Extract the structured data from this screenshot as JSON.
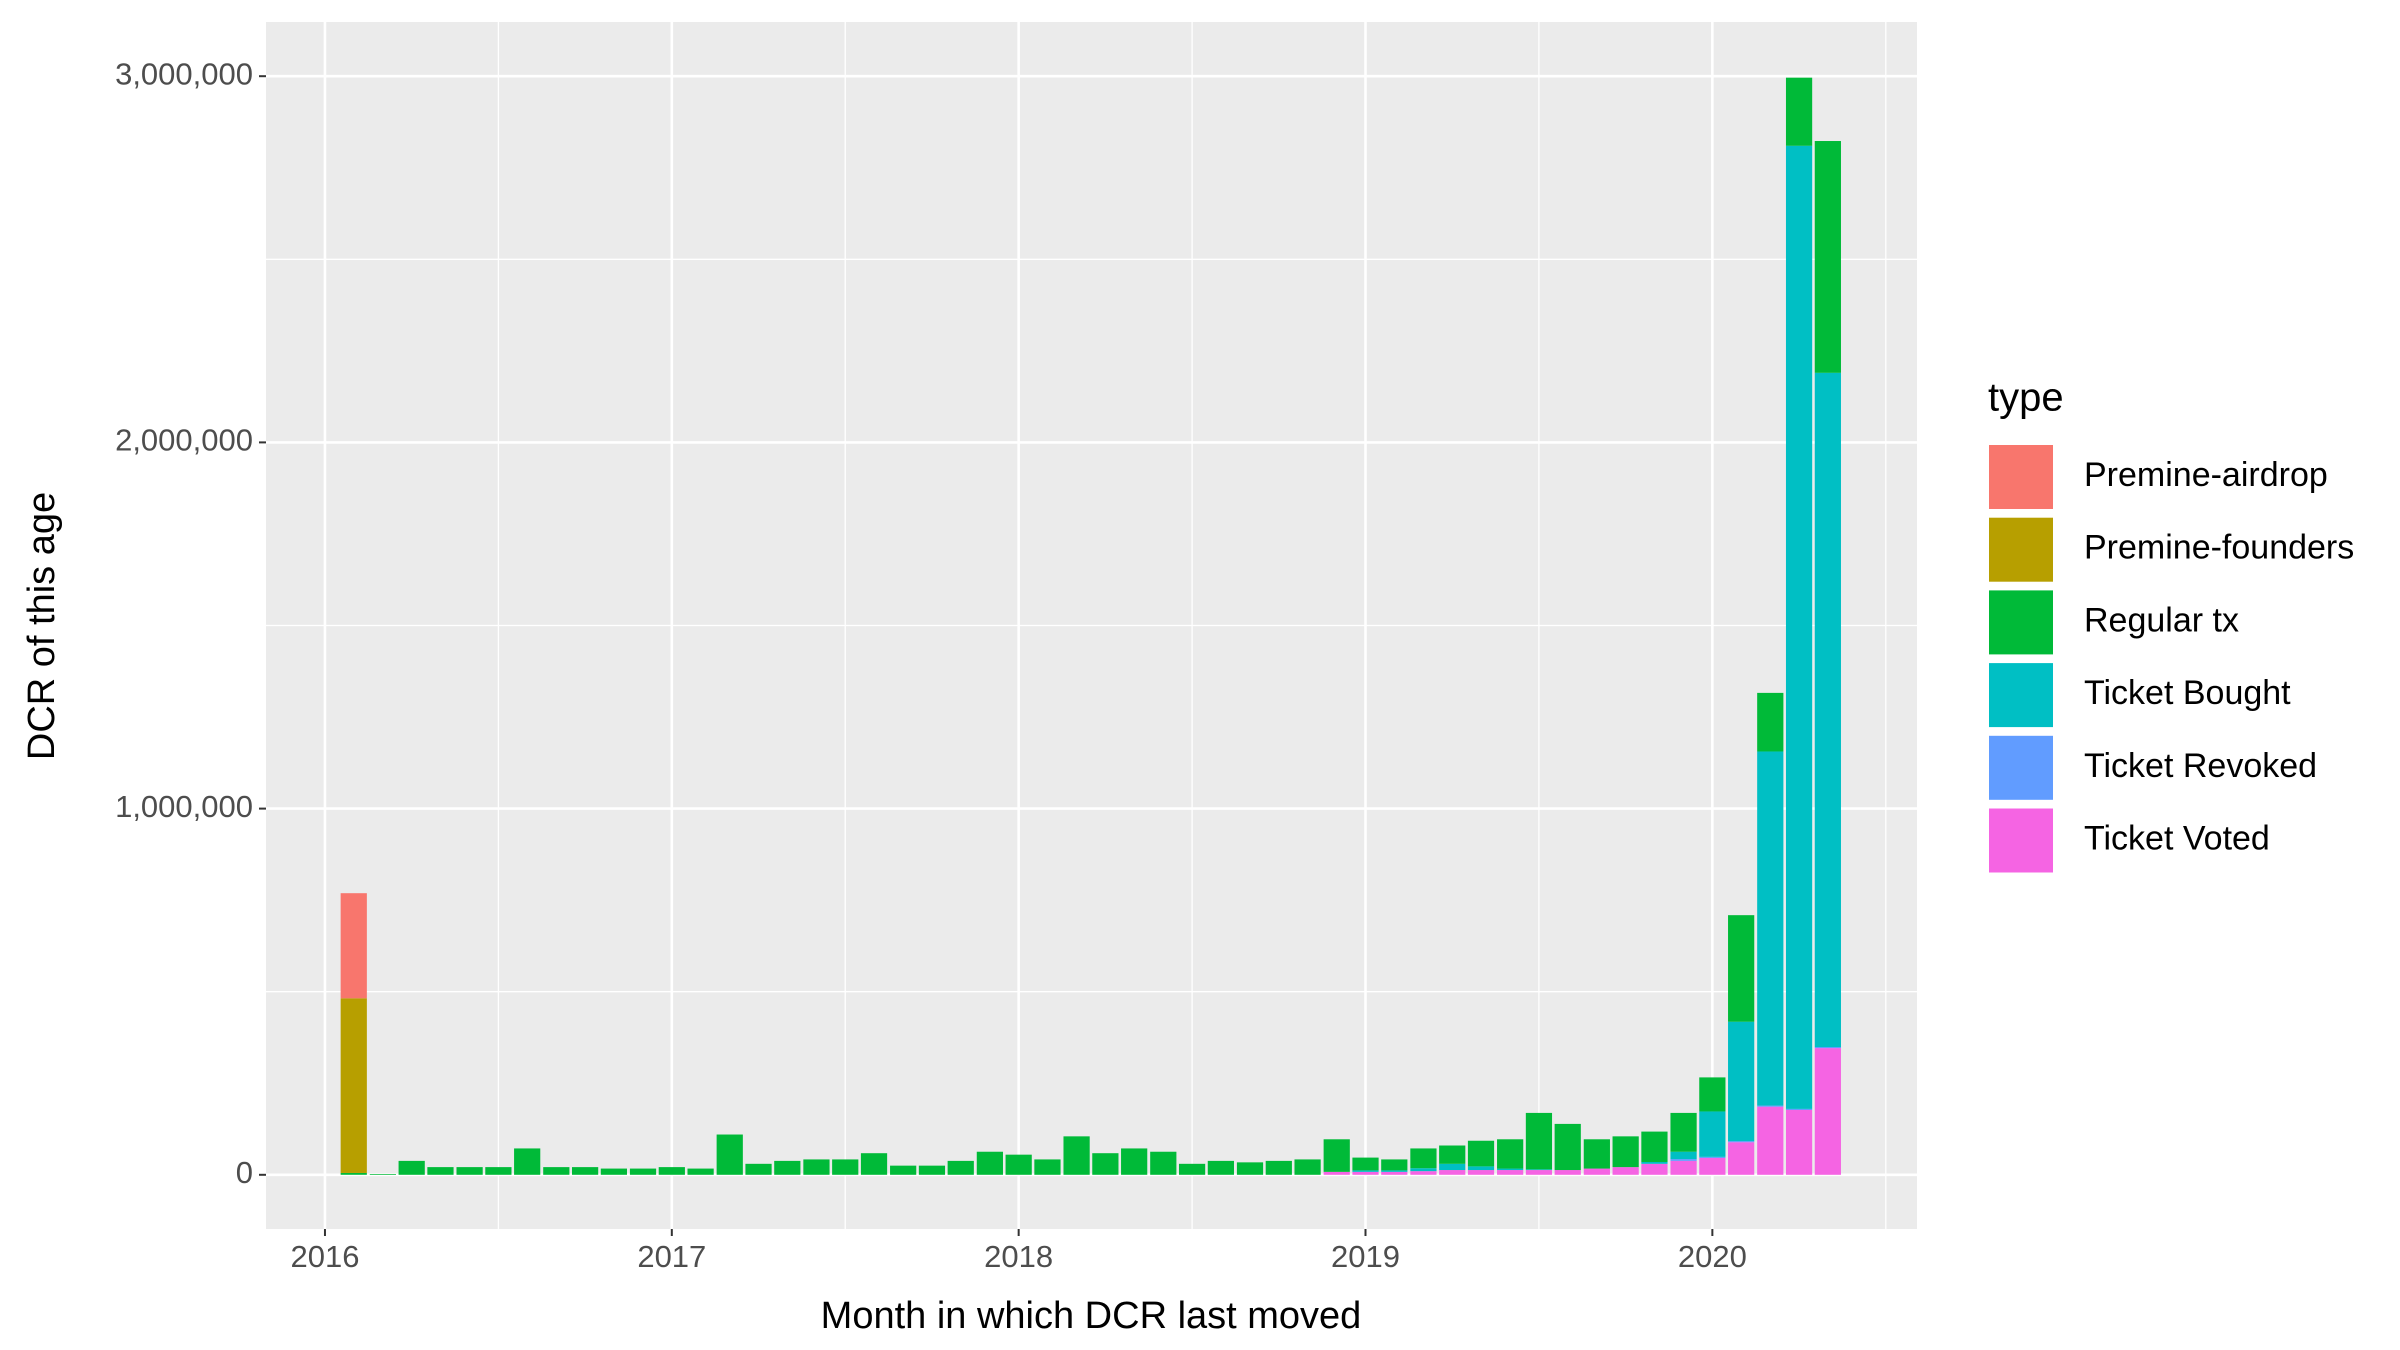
{
  "chart_data": {
    "type": "bar",
    "stacked": true,
    "x_label": "Month in which DCR last moved",
    "y_label": "DCR of this age",
    "legend_title": "type",
    "legend_position": "right",
    "grid": true,
    "x": [
      2016.083,
      2016.167,
      2016.25,
      2016.333,
      2016.417,
      2016.5,
      2016.583,
      2016.667,
      2016.75,
      2016.833,
      2016.917,
      2017,
      2017.083,
      2017.167,
      2017.25,
      2017.333,
      2017.417,
      2017.5,
      2017.583,
      2017.667,
      2017.75,
      2017.833,
      2017.917,
      2018,
      2018.083,
      2018.167,
      2018.25,
      2018.333,
      2018.417,
      2018.5,
      2018.583,
      2018.667,
      2018.75,
      2018.833,
      2018.917,
      2019,
      2019.083,
      2019.167,
      2019.25,
      2019.333,
      2019.417,
      2019.5,
      2019.583,
      2019.667,
      2019.75,
      2019.833,
      2019.917,
      2020,
      2020.083,
      2020.167,
      2020.25,
      2020.333
    ],
    "xlim": [
      2015.83,
      2020.59
    ],
    "xticks": [
      2016,
      2017,
      2018,
      2019,
      2020
    ],
    "ylim": [
      -148000,
      3148000
    ],
    "yticks": [
      0,
      {
        "value": 1000000,
        "label": "1,000,000"
      },
      {
        "value": 2000000,
        "label": "2,000,000"
      },
      {
        "value": 3000000,
        "label": "3,000,000"
      }
    ],
    "series": [
      {
        "name": "Premine-airdrop",
        "color": "#F8766D",
        "values": [
          287000,
          0,
          0,
          0,
          0,
          0,
          0,
          0,
          0,
          0,
          0,
          0,
          0,
          0,
          0,
          0,
          0,
          0,
          0,
          0,
          0,
          0,
          0,
          0,
          0,
          0,
          0,
          0,
          0,
          0,
          0,
          0,
          0,
          0,
          0,
          0,
          0,
          0,
          0,
          0,
          0,
          0,
          0,
          0,
          0,
          0,
          0,
          0,
          0,
          0,
          0,
          0
        ]
      },
      {
        "name": "Premine-founders",
        "color": "#B79F00",
        "values": [
          477000,
          0,
          0,
          0,
          0,
          0,
          0,
          0,
          0,
          0,
          0,
          0,
          0,
          0,
          0,
          0,
          0,
          0,
          0,
          0,
          0,
          0,
          0,
          0,
          0,
          0,
          0,
          0,
          0,
          0,
          0,
          0,
          0,
          0,
          0,
          0,
          0,
          0,
          0,
          0,
          0,
          0,
          0,
          0,
          0,
          0,
          0,
          0,
          0,
          0,
          0,
          0
        ]
      },
      {
        "name": "Regular tx",
        "color": "#00BA38",
        "values": [
          5000,
          2000,
          38000,
          21000,
          21000,
          21000,
          72000,
          21000,
          21000,
          17000,
          17000,
          21000,
          17000,
          110000,
          30000,
          38000,
          42000,
          42000,
          59000,
          25000,
          25000,
          38000,
          63000,
          55000,
          42000,
          105000,
          59000,
          72000,
          63000,
          30000,
          38000,
          34000,
          38000,
          42000,
          89000,
          35000,
          30000,
          54000,
          50000,
          70000,
          80000,
          154000,
          126000,
          80000,
          84000,
          83000,
          106000,
          93000,
          291000,
          160000,
          186000,
          633000
        ]
      },
      {
        "name": "Ticket Bought",
        "color": "#00BFC4",
        "values": [
          0,
          0,
          0,
          0,
          0,
          0,
          0,
          0,
          0,
          0,
          0,
          0,
          0,
          0,
          0,
          0,
          0,
          0,
          0,
          0,
          0,
          0,
          0,
          0,
          0,
          0,
          0,
          0,
          0,
          0,
          0,
          0,
          0,
          0,
          0,
          4000,
          4000,
          8000,
          17000,
          10000,
          4000,
          2000,
          0,
          0,
          0,
          5000,
          20000,
          124000,
          326000,
          967000,
          2630000,
          1841000
        ]
      },
      {
        "name": "Ticket Revoked",
        "color": "#619CFF",
        "values": [
          0,
          0,
          0,
          0,
          0,
          0,
          0,
          0,
          0,
          0,
          0,
          0,
          0,
          0,
          0,
          0,
          0,
          0,
          0,
          0,
          0,
          0,
          0,
          0,
          0,
          0,
          0,
          0,
          0,
          0,
          0,
          0,
          0,
          0,
          0,
          0,
          0,
          0,
          0,
          0,
          0,
          0,
          0,
          0,
          0,
          0,
          5000,
          3000,
          3000,
          3000,
          3000,
          3000
        ]
      },
      {
        "name": "Ticket Voted",
        "color": "#F564E3",
        "values": [
          0,
          0,
          0,
          0,
          0,
          0,
          0,
          0,
          0,
          0,
          0,
          0,
          0,
          0,
          0,
          0,
          0,
          0,
          0,
          0,
          0,
          0,
          0,
          0,
          0,
          0,
          0,
          0,
          0,
          0,
          0,
          0,
          0,
          0,
          8000,
          8000,
          8000,
          10000,
          13000,
          13000,
          13000,
          13000,
          13000,
          17000,
          21000,
          30000,
          38000,
          46000,
          89000,
          186000,
          177000,
          346000
        ]
      }
    ]
  }
}
